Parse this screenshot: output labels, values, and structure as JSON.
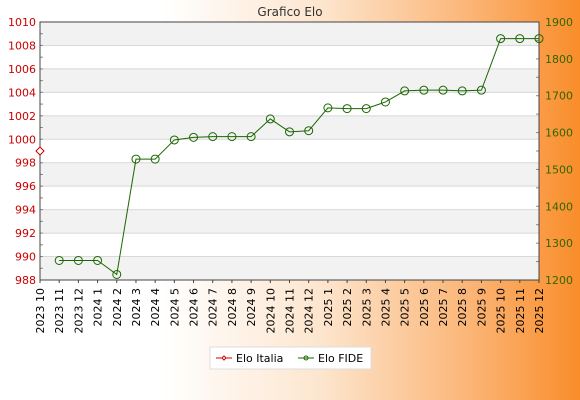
{
  "chart_data": {
    "type": "line",
    "title": "Grafico Elo",
    "categories": [
      "2023 10",
      "2023 11",
      "2023 12",
      "2024 1",
      "2024 2",
      "2024 3",
      "2024 4",
      "2024 5",
      "2024 6",
      "2024 7",
      "2024 8",
      "2024 9",
      "2024 10",
      "2024 11",
      "2024 12",
      "2025 1",
      "2025 2",
      "2025 3",
      "2025 4",
      "2025 5",
      "2025 6",
      "2025 7",
      "2025 8",
      "2025 9",
      "2025 10",
      "2025 11",
      "2025 12"
    ],
    "y_left": {
      "min": 988,
      "max": 1010,
      "ticks": [
        988,
        990,
        992,
        994,
        996,
        998,
        1000,
        1002,
        1004,
        1006,
        1008,
        1010
      ],
      "color": "#cc0000"
    },
    "y_right": {
      "min": 1200,
      "max": 1900,
      "ticks": [
        1200,
        1300,
        1400,
        1500,
        1600,
        1700,
        1800,
        1900
      ],
      "color": "#336600"
    },
    "series": [
      {
        "name": "Elo Italia",
        "axis": "left",
        "color": "#cc0000",
        "marker": "diamond",
        "values": [
          999,
          null,
          null,
          null,
          null,
          null,
          null,
          null,
          null,
          null,
          null,
          null,
          null,
          null,
          null,
          null,
          null,
          null,
          null,
          null,
          null,
          null,
          null,
          null,
          null,
          null,
          null
        ]
      },
      {
        "name": "Elo FIDE",
        "axis": "right",
        "color": "#1a6600",
        "marker": "circle",
        "values": [
          null,
          1253,
          1253,
          1253,
          1215,
          1528,
          1528,
          1580,
          1587,
          1589,
          1589,
          1589,
          1637,
          1602,
          1605,
          1667,
          1665,
          1665,
          1683,
          1713,
          1715,
          1715,
          1713,
          1715,
          1855,
          1855,
          1855
        ]
      }
    ],
    "grid": true,
    "legend": "bottom-center"
  }
}
